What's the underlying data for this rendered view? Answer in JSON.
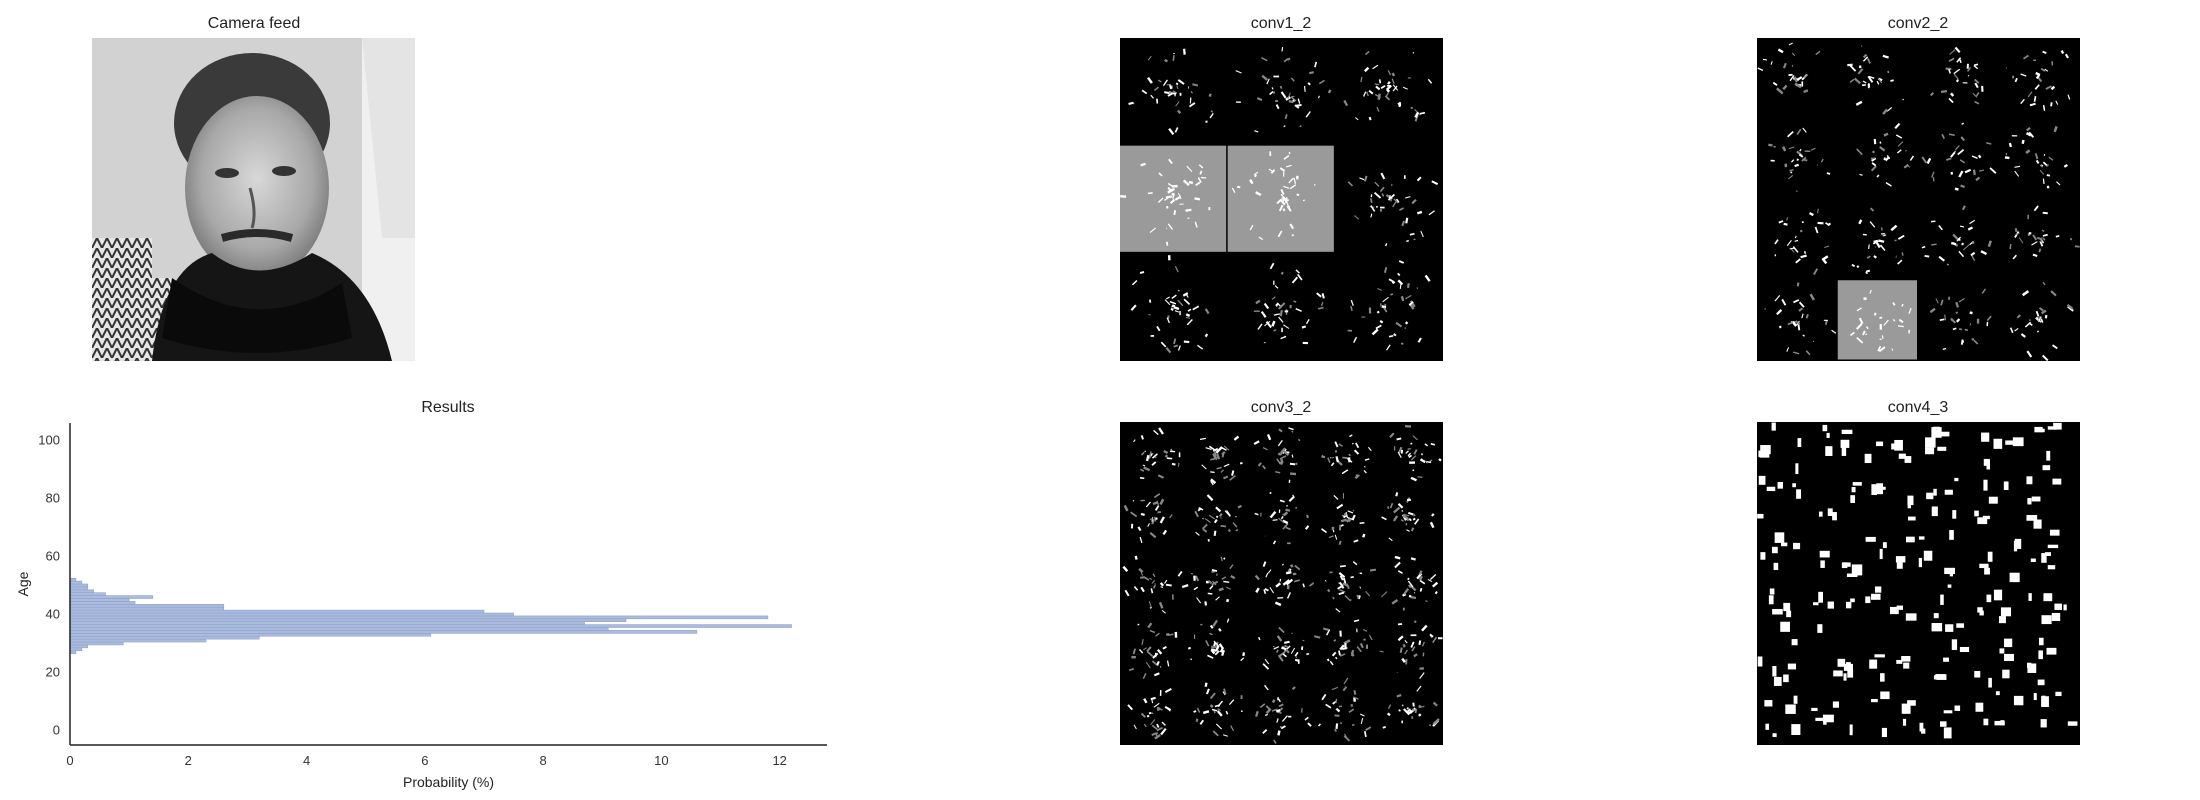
{
  "panels": {
    "camera": {
      "title": "Camera feed"
    },
    "results": {
      "title": "Results"
    },
    "conv1": {
      "title": "conv1_2",
      "grid": 3
    },
    "conv2": {
      "title": "conv2_2",
      "grid": 4
    },
    "conv3": {
      "title": "conv3_2",
      "grid": 5
    },
    "conv4": {
      "title": "conv4_3",
      "grid": 6
    }
  },
  "colors": {
    "bar": "#aabbdd",
    "bar_edge": "#8ea2cc",
    "axis": "#222222"
  },
  "chart_data": {
    "type": "bar",
    "orientation": "horizontal",
    "title": "Results",
    "xlabel": "Probability (%)",
    "ylabel": "Age",
    "xlim": [
      0,
      12.8
    ],
    "ylim": [
      -5,
      106
    ],
    "xticks": [
      0,
      2,
      4,
      6,
      8,
      10,
      12
    ],
    "yticks": [
      0,
      20,
      40,
      60,
      80,
      100
    ],
    "grid": false,
    "x": [
      27,
      28,
      29,
      30,
      31,
      32,
      33,
      34,
      35,
      36,
      37,
      38,
      39,
      40,
      41,
      42,
      43,
      44,
      45,
      46,
      47,
      48,
      49,
      50,
      51,
      52
    ],
    "values": [
      0.1,
      0.2,
      0.3,
      0.9,
      2.3,
      3.2,
      6.1,
      10.6,
      9.1,
      12.2,
      8.7,
      9.4,
      11.8,
      7.5,
      7.0,
      2.6,
      2.6,
      1.1,
      1.0,
      1.4,
      0.6,
      0.4,
      0.3,
      0.3,
      0.2,
      0.1
    ]
  }
}
